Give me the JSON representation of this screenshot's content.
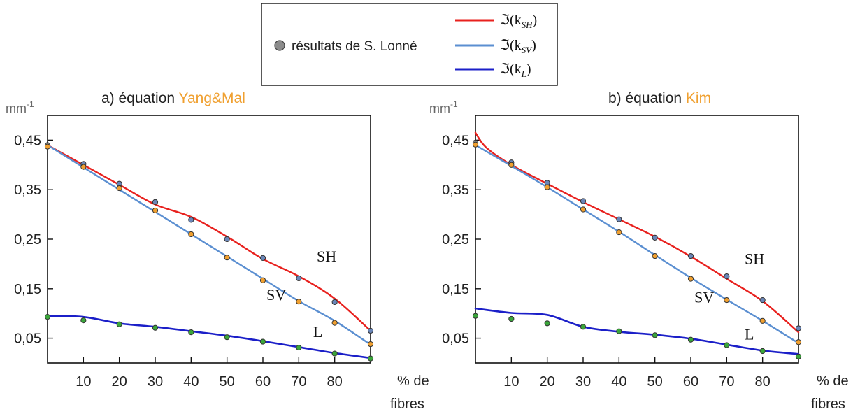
{
  "legend": {
    "marker_label": "résultats  de S. Lonné",
    "lines": [
      {
        "label_prefix": "ℑ(k",
        "label_sub": "SH",
        "label_suffix": ")",
        "color": "#e8211e"
      },
      {
        "label_prefix": "ℑ(k",
        "label_sub": "SV",
        "label_suffix": ")",
        "color": "#5b8fd1"
      },
      {
        "label_prefix": "ℑ(k",
        "label_sub": "L",
        "label_suffix": ")",
        "color": "#1b1fc8"
      }
    ]
  },
  "colors": {
    "sh": "#e8211e",
    "sv": "#5b8fd1",
    "l": "#1b1fc8",
    "accent_orange": "#f0a030",
    "marker_gray": "#8c8c8c",
    "marker_blue": "#6a86b8",
    "marker_orange": "#f0a030",
    "marker_green": "#3aa63a"
  },
  "chart_data": [
    {
      "type": "line",
      "title_prefix": "a) équation ",
      "title_highlight": "Yang&Mal",
      "ylabel": "mm",
      "ylabel_sup": "-1",
      "xlabel_line1": "% de",
      "xlabel_line2": "fibres",
      "xlim": [
        0,
        90
      ],
      "ylim": [
        0,
        0.5
      ],
      "xticks": [
        10,
        20,
        30,
        40,
        50,
        60,
        70,
        80
      ],
      "yticks": [
        {
          "v": 0.45,
          "label": "0,45"
        },
        {
          "v": 0.35,
          "label": "0,35"
        },
        {
          "v": 0.25,
          "label": "0,25"
        },
        {
          "v": 0.15,
          "label": "0,15"
        },
        {
          "v": 0.05,
          "label": "0,05"
        }
      ],
      "series": [
        {
          "name": "SH",
          "x": [
            0,
            10,
            20,
            30,
            40,
            50,
            60,
            70,
            80,
            90
          ],
          "values": [
            0.44,
            0.4,
            0.36,
            0.32,
            0.295,
            0.255,
            0.21,
            0.175,
            0.13,
            0.065
          ]
        },
        {
          "name": "SV",
          "x": [
            0,
            10,
            20,
            30,
            40,
            50,
            60,
            70,
            80,
            90
          ],
          "values": [
            0.44,
            0.395,
            0.35,
            0.305,
            0.26,
            0.215,
            0.17,
            0.125,
            0.085,
            0.037
          ]
        },
        {
          "name": "L",
          "x": [
            0,
            10,
            20,
            30,
            40,
            50,
            60,
            70,
            80,
            90
          ],
          "values": [
            0.095,
            0.093,
            0.08,
            0.073,
            0.064,
            0.055,
            0.044,
            0.032,
            0.02,
            0.01
          ]
        }
      ],
      "markers": [
        {
          "x": 0,
          "y": 0.44,
          "c": "gray"
        },
        {
          "x": 0,
          "y": 0.437,
          "c": "orange"
        },
        {
          "x": 10,
          "y": 0.402,
          "c": "blue"
        },
        {
          "x": 10,
          "y": 0.396,
          "c": "orange"
        },
        {
          "x": 20,
          "y": 0.362,
          "c": "blue"
        },
        {
          "x": 20,
          "y": 0.353,
          "c": "orange"
        },
        {
          "x": 30,
          "y": 0.325,
          "c": "blue"
        },
        {
          "x": 30,
          "y": 0.308,
          "c": "orange"
        },
        {
          "x": 40,
          "y": 0.289,
          "c": "blue"
        },
        {
          "x": 40,
          "y": 0.26,
          "c": "orange"
        },
        {
          "x": 50,
          "y": 0.25,
          "c": "blue"
        },
        {
          "x": 50,
          "y": 0.213,
          "c": "orange"
        },
        {
          "x": 60,
          "y": 0.212,
          "c": "blue"
        },
        {
          "x": 60,
          "y": 0.167,
          "c": "orange"
        },
        {
          "x": 70,
          "y": 0.171,
          "c": "blue"
        },
        {
          "x": 70,
          "y": 0.124,
          "c": "orange"
        },
        {
          "x": 80,
          "y": 0.123,
          "c": "blue"
        },
        {
          "x": 80,
          "y": 0.081,
          "c": "orange"
        },
        {
          "x": 90,
          "y": 0.065,
          "c": "blue"
        },
        {
          "x": 90,
          "y": 0.038,
          "c": "orange"
        },
        {
          "x": 0,
          "y": 0.093,
          "c": "green"
        },
        {
          "x": 10,
          "y": 0.086,
          "c": "green"
        },
        {
          "x": 20,
          "y": 0.078,
          "c": "green"
        },
        {
          "x": 30,
          "y": 0.071,
          "c": "green"
        },
        {
          "x": 40,
          "y": 0.062,
          "c": "green"
        },
        {
          "x": 50,
          "y": 0.052,
          "c": "green"
        },
        {
          "x": 60,
          "y": 0.043,
          "c": "green"
        },
        {
          "x": 70,
          "y": 0.031,
          "c": "green"
        },
        {
          "x": 80,
          "y": 0.019,
          "c": "green"
        },
        {
          "x": 90,
          "y": 0.009,
          "c": "green"
        }
      ],
      "curve_labels": [
        {
          "text": "SH",
          "x": 75,
          "y": 0.205
        },
        {
          "text": "SV",
          "x": 61,
          "y": 0.127
        },
        {
          "text": "L",
          "x": 74,
          "y": 0.052
        }
      ]
    },
    {
      "type": "line",
      "title_prefix": "b) équation ",
      "title_highlight": "Kim",
      "ylabel": "mm",
      "ylabel_sup": "-1",
      "xlabel_line1": "% de",
      "xlabel_line2": "fibres",
      "xlim": [
        0,
        90
      ],
      "ylim": [
        0,
        0.5
      ],
      "xticks": [
        10,
        20,
        30,
        40,
        50,
        60,
        70,
        80
      ],
      "yticks": [
        {
          "v": 0.45,
          "label": "0,45"
        },
        {
          "v": 0.35,
          "label": "0,35"
        },
        {
          "v": 0.25,
          "label": "0,25"
        },
        {
          "v": 0.15,
          "label": "0,15"
        },
        {
          "v": 0.05,
          "label": "0,05"
        }
      ],
      "series": [
        {
          "name": "SH",
          "x": [
            0,
            3,
            10,
            20,
            30,
            40,
            50,
            60,
            70,
            80,
            90
          ],
          "values": [
            0.465,
            0.435,
            0.4,
            0.362,
            0.325,
            0.29,
            0.255,
            0.215,
            0.17,
            0.125,
            0.062
          ]
        },
        {
          "name": "SV",
          "x": [
            0,
            10,
            20,
            30,
            40,
            50,
            60,
            70,
            80,
            90
          ],
          "values": [
            0.44,
            0.398,
            0.355,
            0.31,
            0.265,
            0.218,
            0.172,
            0.128,
            0.085,
            0.04
          ]
        },
        {
          "name": "L",
          "x": [
            0,
            10,
            20,
            30,
            40,
            50,
            60,
            70,
            80,
            90
          ],
          "values": [
            0.11,
            0.101,
            0.097,
            0.073,
            0.063,
            0.057,
            0.049,
            0.037,
            0.025,
            0.018
          ]
        }
      ],
      "markers": [
        {
          "x": 0,
          "y": 0.445,
          "c": "gray"
        },
        {
          "x": 0,
          "y": 0.441,
          "c": "orange"
        },
        {
          "x": 10,
          "y": 0.405,
          "c": "blue"
        },
        {
          "x": 10,
          "y": 0.4,
          "c": "orange"
        },
        {
          "x": 20,
          "y": 0.364,
          "c": "blue"
        },
        {
          "x": 20,
          "y": 0.355,
          "c": "orange"
        },
        {
          "x": 30,
          "y": 0.327,
          "c": "blue"
        },
        {
          "x": 30,
          "y": 0.31,
          "c": "orange"
        },
        {
          "x": 40,
          "y": 0.29,
          "c": "blue"
        },
        {
          "x": 40,
          "y": 0.264,
          "c": "orange"
        },
        {
          "x": 50,
          "y": 0.253,
          "c": "blue"
        },
        {
          "x": 50,
          "y": 0.216,
          "c": "orange"
        },
        {
          "x": 60,
          "y": 0.216,
          "c": "blue"
        },
        {
          "x": 60,
          "y": 0.17,
          "c": "orange"
        },
        {
          "x": 70,
          "y": 0.175,
          "c": "blue"
        },
        {
          "x": 70,
          "y": 0.127,
          "c": "orange"
        },
        {
          "x": 80,
          "y": 0.127,
          "c": "blue"
        },
        {
          "x": 80,
          "y": 0.085,
          "c": "orange"
        },
        {
          "x": 90,
          "y": 0.07,
          "c": "blue"
        },
        {
          "x": 90,
          "y": 0.042,
          "c": "orange"
        },
        {
          "x": 0,
          "y": 0.095,
          "c": "green"
        },
        {
          "x": 10,
          "y": 0.089,
          "c": "green"
        },
        {
          "x": 20,
          "y": 0.08,
          "c": "green"
        },
        {
          "x": 30,
          "y": 0.073,
          "c": "green"
        },
        {
          "x": 40,
          "y": 0.064,
          "c": "green"
        },
        {
          "x": 50,
          "y": 0.056,
          "c": "green"
        },
        {
          "x": 60,
          "y": 0.047,
          "c": "green"
        },
        {
          "x": 70,
          "y": 0.036,
          "c": "green"
        },
        {
          "x": 80,
          "y": 0.024,
          "c": "green"
        },
        {
          "x": 90,
          "y": 0.013,
          "c": "green"
        }
      ],
      "curve_labels": [
        {
          "text": "SH",
          "x": 75,
          "y": 0.2
        },
        {
          "text": "SV",
          "x": 61,
          "y": 0.122
        },
        {
          "text": "L",
          "x": 75,
          "y": 0.047
        }
      ]
    }
  ]
}
